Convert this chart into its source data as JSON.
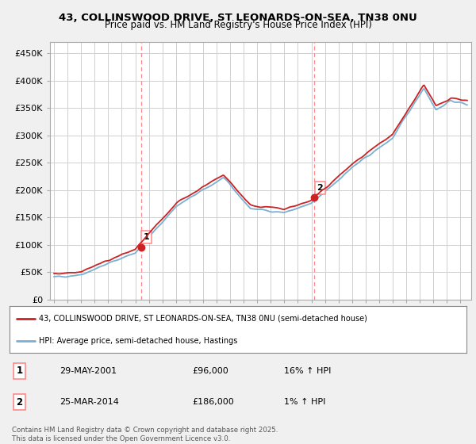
{
  "title_line1": "43, COLLINSWOOD DRIVE, ST LEONARDS-ON-SEA, TN38 0NU",
  "title_line2": "Price paid vs. HM Land Registry's House Price Index (HPI)",
  "ylabel_ticks": [
    "£0",
    "£50K",
    "£100K",
    "£150K",
    "£200K",
    "£250K",
    "£300K",
    "£350K",
    "£400K",
    "£450K"
  ],
  "ytick_values": [
    0,
    50000,
    100000,
    150000,
    200000,
    250000,
    300000,
    350000,
    400000,
    450000
  ],
  "ylim": [
    0,
    470000
  ],
  "xlim_start": 1994.7,
  "xlim_end": 2025.8,
  "background_color": "#f0f0f0",
  "plot_bg_color": "#ffffff",
  "grid_color": "#d0d0d0",
  "hpi_color": "#7ab0d4",
  "price_color": "#cc2222",
  "dashed_line_color": "#ff8888",
  "marker1_x": 2001.41,
  "marker1_y": 96000,
  "marker2_x": 2014.23,
  "marker2_y": 186000,
  "legend_label1": "43, COLLINSWOOD DRIVE, ST LEONARDS-ON-SEA, TN38 0NU (semi-detached house)",
  "legend_label2": "HPI: Average price, semi-detached house, Hastings",
  "table_entries": [
    {
      "num": "1",
      "date": "29-MAY-2001",
      "price": "£96,000",
      "hpi": "16% ↑ HPI"
    },
    {
      "num": "2",
      "date": "25-MAR-2014",
      "price": "£186,000",
      "hpi": "1% ↑ HPI"
    }
  ],
  "footer": "Contains HM Land Registry data © Crown copyright and database right 2025.\nThis data is licensed under the Open Government Licence v3.0."
}
